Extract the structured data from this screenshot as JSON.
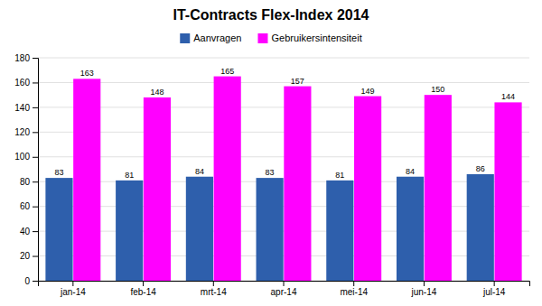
{
  "chart_data": {
    "type": "bar",
    "title": "IT-Contracts Flex-Index 2014",
    "categories": [
      "jan-14",
      "feb-14",
      "mrt-14",
      "apr-14",
      "mei-14",
      "jun-14",
      "jul-14"
    ],
    "series": [
      {
        "name": "Aanvragen",
        "color": "#2E5FAC",
        "values": [
          83,
          81,
          84,
          83,
          81,
          84,
          86
        ]
      },
      {
        "name": "Gebruikersintensiteit",
        "color": "#FF00FF",
        "values": [
          163,
          148,
          165,
          157,
          149,
          150,
          144
        ]
      }
    ],
    "ylim": [
      0,
      180
    ],
    "yticks": [
      0,
      20,
      40,
      60,
      80,
      100,
      120,
      140,
      160,
      180
    ],
    "grid": true,
    "data_labels": true,
    "legend": "top"
  }
}
